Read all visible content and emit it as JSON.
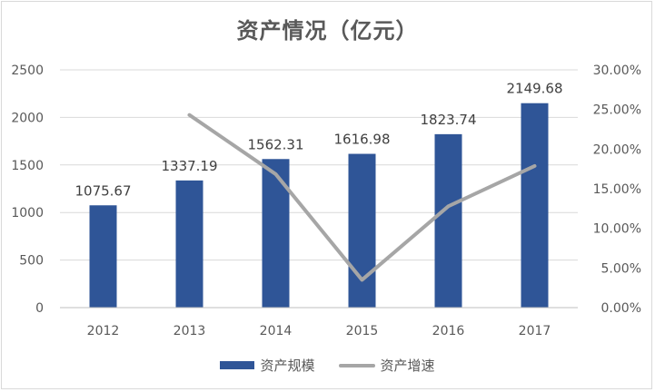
{
  "chart_data": {
    "type": "bar",
    "title": "资产情况（亿元）",
    "categories": [
      "2012",
      "2013",
      "2014",
      "2015",
      "2016",
      "2017"
    ],
    "series": [
      {
        "name": "资产规模",
        "type": "bar",
        "axis": "left",
        "values": [
          1075.67,
          1337.19,
          1562.31,
          1616.98,
          1823.74,
          2149.68
        ],
        "value_labels": [
          "1075.67",
          "1337.19",
          "1562.31",
          "1616.98",
          "1823.74",
          "2149.68"
        ],
        "color": "#2f5597"
      },
      {
        "name": "资产增速",
        "type": "line",
        "axis": "right",
        "values": [
          null,
          0.2431,
          0.1684,
          0.035,
          0.1279,
          0.1787
        ],
        "color": "#a6a6a6"
      }
    ],
    "y_left": {
      "ylim": [
        0,
        2500
      ],
      "ticks": [
        "0",
        "500",
        "1000",
        "1500",
        "2000",
        "2500"
      ]
    },
    "y_right": {
      "ylim": [
        0,
        0.3
      ],
      "ticks": [
        "0.00%",
        "5.00%",
        "10.00%",
        "15.00%",
        "20.00%",
        "25.00%",
        "30.00%"
      ]
    },
    "grid": true,
    "legend": "bottom"
  }
}
